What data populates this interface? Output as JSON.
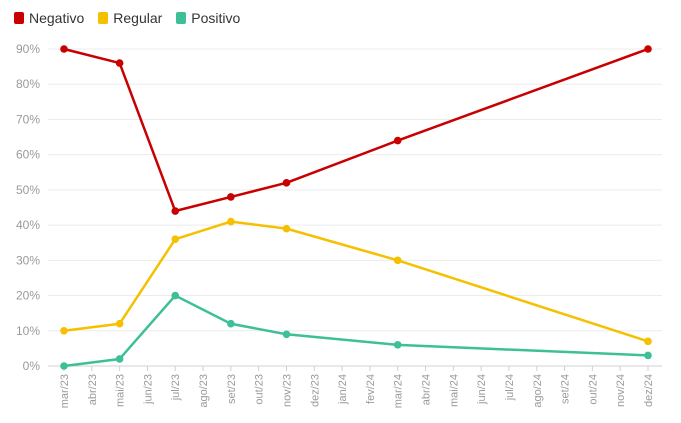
{
  "chart_data": {
    "type": "line",
    "x": [
      "mar/23",
      "abr/23",
      "mai/23",
      "jun/23",
      "jul/23",
      "ago/23",
      "set/23",
      "out/23",
      "nov/23",
      "dez/23",
      "jan/24",
      "fev/24",
      "mar/24",
      "abr/24",
      "mai/24",
      "jun/24",
      "jul/24",
      "ago/24",
      "set/24",
      "out/24",
      "nov/24",
      "dez/24"
    ],
    "ylim": [
      0,
      90
    ],
    "yticks": [
      0,
      10,
      20,
      30,
      40,
      50,
      60,
      70,
      80,
      90
    ],
    "ytick_labels": [
      "0%",
      "10%",
      "20%",
      "30%",
      "40%",
      "50%",
      "60%",
      "70%",
      "80%",
      "90%"
    ],
    "grid": true,
    "legend": "top-left",
    "series": [
      {
        "name": "Negativo",
        "color": "#c80000",
        "points": [
          [
            "mar/23",
            90
          ],
          [
            "mai/23",
            86
          ],
          [
            "jul/23",
            44
          ],
          [
            "set/23",
            48
          ],
          [
            "nov/23",
            52
          ],
          [
            "mar/24",
            64
          ],
          [
            "dez/24",
            90
          ]
        ]
      },
      {
        "name": "Regular",
        "color": "#f5c000",
        "points": [
          [
            "mar/23",
            10
          ],
          [
            "mai/23",
            12
          ],
          [
            "jul/23",
            36
          ],
          [
            "set/23",
            41
          ],
          [
            "nov/23",
            39
          ],
          [
            "mar/24",
            30
          ],
          [
            "dez/24",
            7
          ]
        ]
      },
      {
        "name": "Positivo",
        "color": "#3dbf98",
        "points": [
          [
            "mar/23",
            0
          ],
          [
            "mai/23",
            2
          ],
          [
            "jul/23",
            20
          ],
          [
            "set/23",
            12
          ],
          [
            "nov/23",
            9
          ],
          [
            "mar/24",
            6
          ],
          [
            "dez/24",
            3
          ]
        ]
      }
    ]
  }
}
